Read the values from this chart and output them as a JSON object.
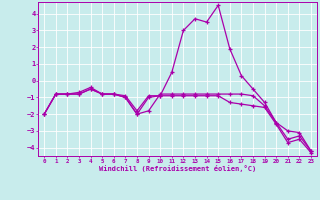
{
  "xlabel": "Windchill (Refroidissement éolien,°C)",
  "background_color": "#c8ecec",
  "grid_color": "#b0d8d8",
  "line_color": "#aa00aa",
  "xlim": [
    -0.5,
    23.5
  ],
  "ylim": [
    -4.5,
    4.7
  ],
  "xticks": [
    0,
    1,
    2,
    3,
    4,
    5,
    6,
    7,
    8,
    9,
    10,
    11,
    12,
    13,
    14,
    15,
    16,
    17,
    18,
    19,
    20,
    21,
    22,
    23
  ],
  "yticks": [
    -4,
    -3,
    -2,
    -1,
    0,
    1,
    2,
    3,
    4
  ],
  "series": [
    [
      -2.0,
      -0.8,
      -0.8,
      -0.7,
      -0.4,
      -0.8,
      -0.8,
      -0.9,
      -1.8,
      -0.9,
      -0.9,
      0.5,
      3.0,
      3.7,
      3.5,
      4.5,
      1.9,
      0.3,
      -0.5,
      -1.3,
      -2.5,
      -3.0,
      -3.1,
      -4.2
    ],
    [
      -2.0,
      -0.8,
      -0.8,
      -0.8,
      -0.5,
      -0.8,
      -0.8,
      -1.0,
      -2.0,
      -1.0,
      -0.9,
      -0.9,
      -0.9,
      -0.9,
      -0.9,
      -0.9,
      -1.3,
      -1.4,
      -1.5,
      -1.6,
      -2.6,
      -3.7,
      -3.5,
      -4.3
    ],
    [
      -2.0,
      -0.8,
      -0.8,
      -0.8,
      -0.5,
      -0.8,
      -0.8,
      -1.0,
      -2.0,
      -1.8,
      -0.8,
      -0.8,
      -0.8,
      -0.8,
      -0.8,
      -0.8,
      -0.8,
      -0.8,
      -0.9,
      -1.5,
      -2.5,
      -3.5,
      -3.3,
      -4.2
    ]
  ]
}
